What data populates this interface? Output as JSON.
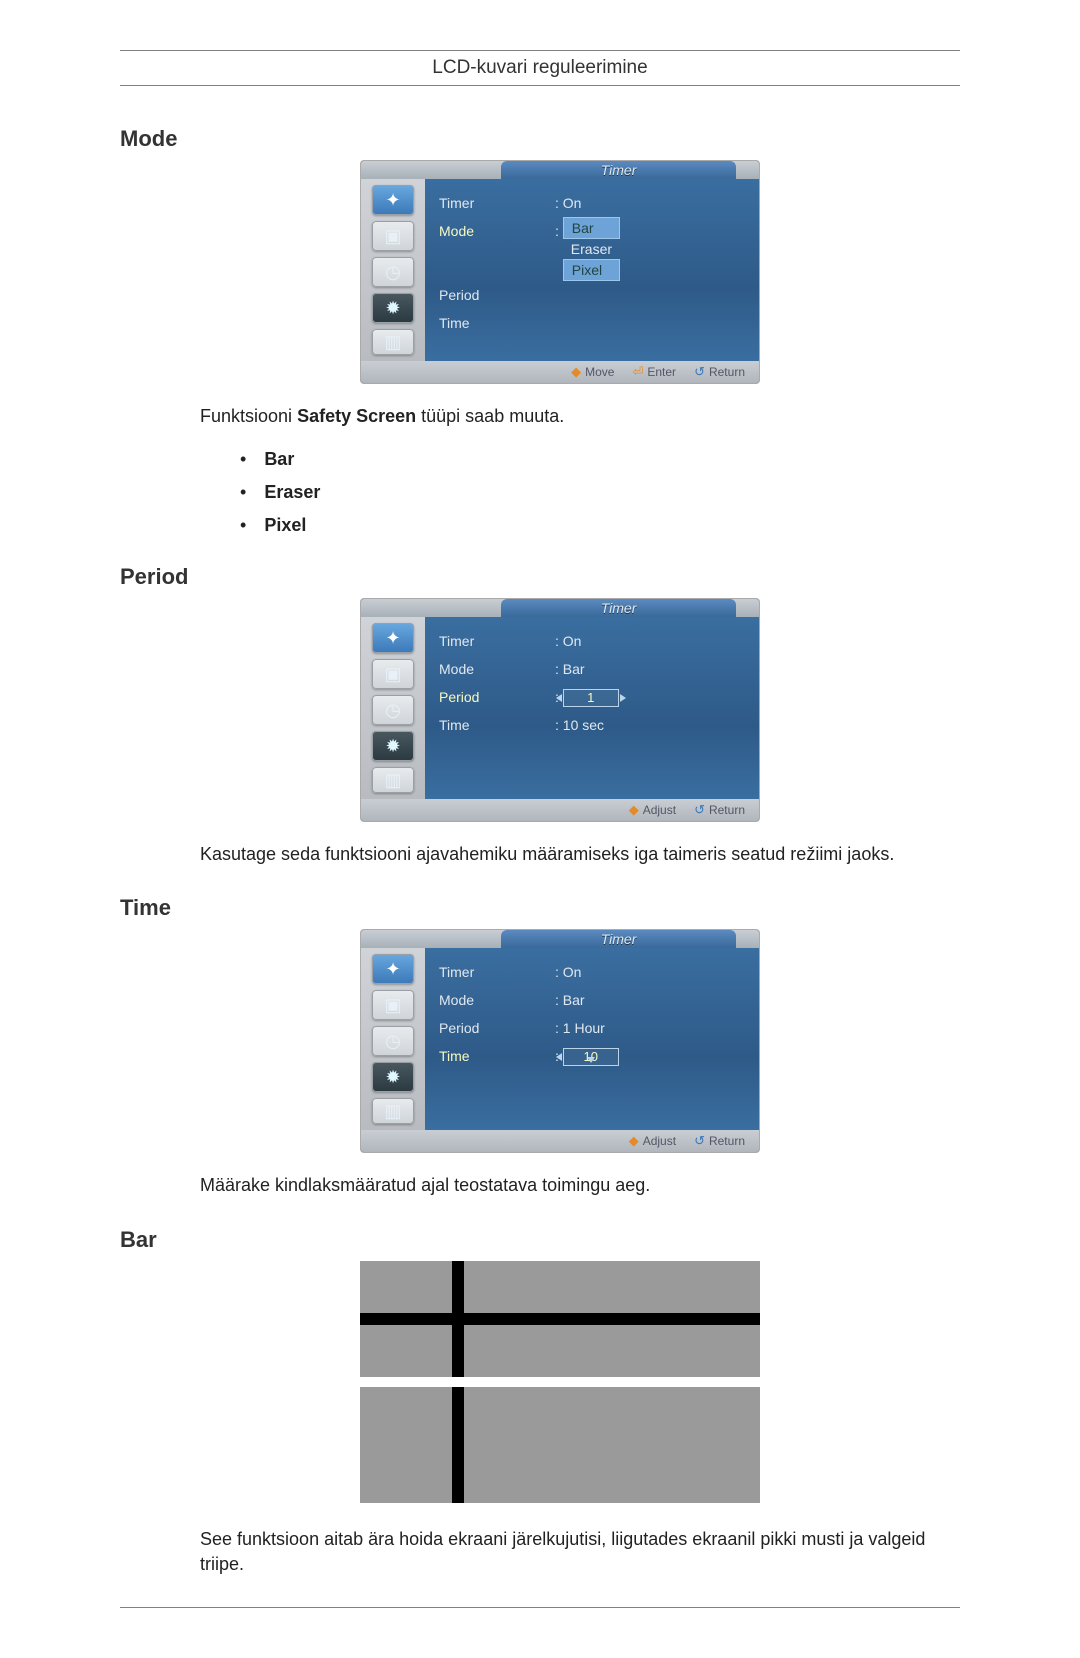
{
  "page_header": "LCD-kuvari reguleerimine",
  "sections": {
    "mode": {
      "heading": "Mode",
      "desc_prefix": "Funktsiooni ",
      "desc_bold": "Safety Screen",
      "desc_suffix": " tüüpi saab muuta.",
      "bullets": [
        "Bar",
        "Eraser",
        "Pixel"
      ]
    },
    "period": {
      "heading": "Period",
      "desc": "Kasutage seda funktsiooni ajavahemiku määramiseks iga taimeris seatud režiimi jaoks."
    },
    "time": {
      "heading": "Time",
      "desc": "Määrake kindlaksmääratud ajal teostatava toimingu aeg."
    },
    "bar": {
      "heading": "Bar",
      "desc": "See funktsioon aitab ära hoida ekraani järelkujutisi, liigutades ekraanil pikki musti ja valgeid triipe."
    }
  },
  "osd": {
    "title": "Timer",
    "labels": {
      "timer": "Timer",
      "mode": "Mode",
      "period": "Period",
      "time": "Time"
    },
    "mode_menu": {
      "timer_val": "On",
      "dropdown": [
        "Bar",
        "Eraser",
        "Pixel"
      ]
    },
    "period_menu": {
      "timer_val": "On",
      "mode_val": "Bar",
      "period_val": "1",
      "time_val": "10 sec"
    },
    "time_menu": {
      "timer_val": "On",
      "mode_val": "Bar",
      "period_val": "1 Hour",
      "time_val": "10"
    },
    "footer": {
      "move": "Move",
      "enter": "Enter",
      "return": "Return",
      "adjust": "Adjust"
    }
  },
  "colors": {
    "osd_bg": "#3a6ea0",
    "osd_highlight": "#6da3d6",
    "osd_active_text": "#f7f9c0",
    "bar_gray": "#9a9a9a",
    "bar_black": "#000000"
  }
}
